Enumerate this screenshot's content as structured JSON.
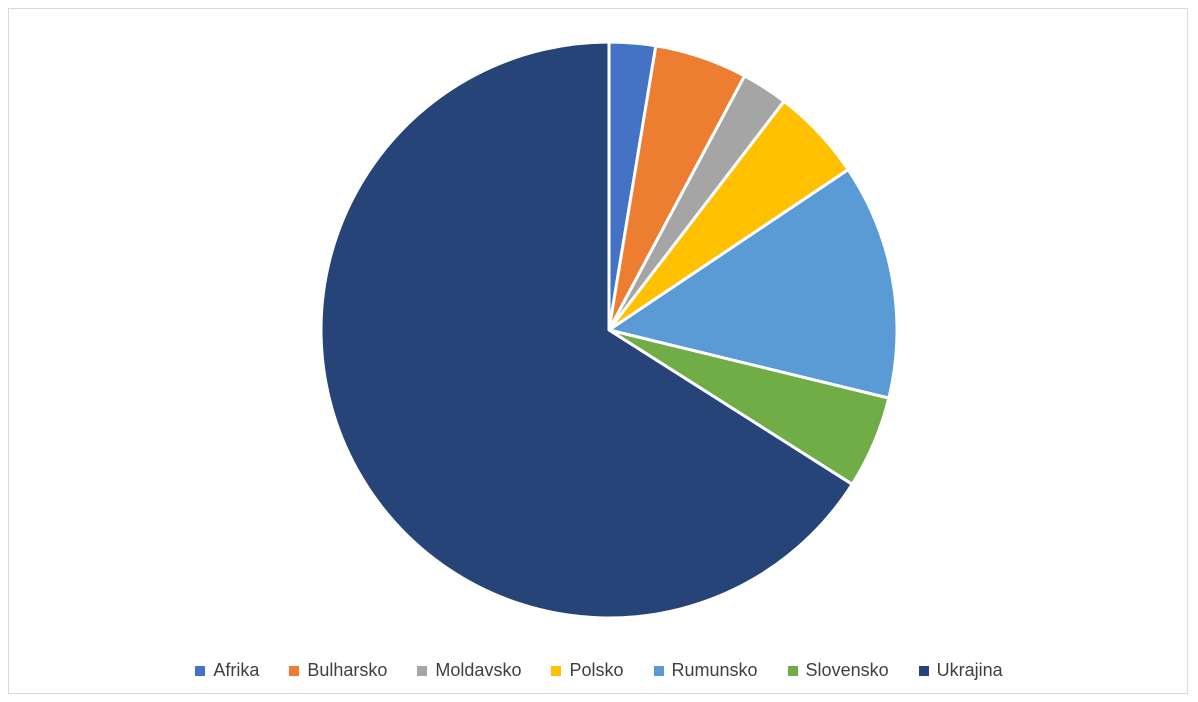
{
  "chart_data": {
    "type": "pie",
    "title": "",
    "start_angle_deg": 0,
    "direction": "clockwise",
    "legend_position": "bottom",
    "slices": [
      {
        "label": "Afrika",
        "value": 2.6,
        "color": "#4472C4"
      },
      {
        "label": "Bulharsko",
        "value": 5.2,
        "color": "#ED7D31"
      },
      {
        "label": "Moldavsko",
        "value": 2.6,
        "color": "#A5A5A5"
      },
      {
        "label": "Polsko",
        "value": 5.2,
        "color": "#FFC000"
      },
      {
        "label": "Rumunsko",
        "value": 13.2,
        "color": "#5B9BD5"
      },
      {
        "label": "Slovensko",
        "value": 5.2,
        "color": "#70AD47"
      },
      {
        "label": "Ukrajina",
        "value": 66.0,
        "color": "#264478"
      }
    ]
  }
}
